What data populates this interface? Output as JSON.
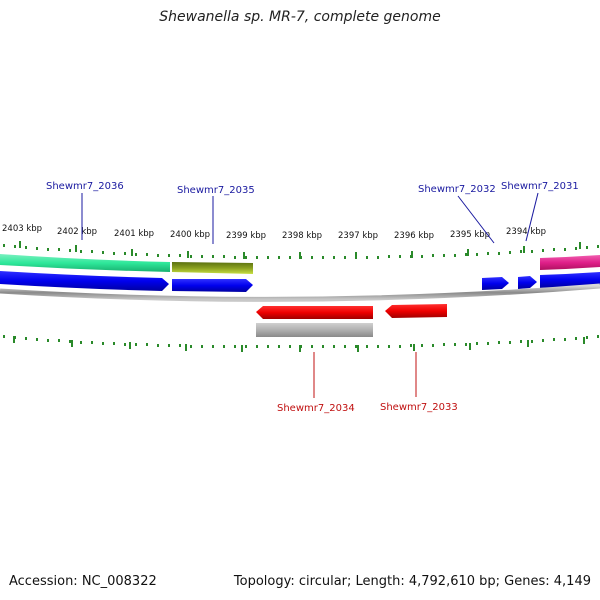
{
  "title": "Shewanella sp. MR-7, complete genome",
  "footer": {
    "accession": "Accession: NC_008322",
    "topology": "Topology: circular; Length: 4,792,610 bp; Genes: 4,149"
  },
  "tick_labels": [
    "2403 kbp",
    "2402 kbp",
    "2401 kbp",
    "2400 kbp",
    "2399 kbp",
    "2398 kbp",
    "2397 kbp",
    "2396 kbp",
    "2395 kbp",
    "2394 kbp"
  ],
  "genes_forward_labels": [
    "Shewmr7_2036",
    "Shewmr7_2035",
    "Shewmr7_2032",
    "Shewmr7_2031"
  ],
  "genes_reverse_labels": [
    "Shewmr7_2034",
    "Shewmr7_2033"
  ],
  "colors": {
    "forward_label": "#1a1aa0",
    "reverse_label": "#c01010",
    "cds_forward": "#0000ee",
    "cds_reverse": "#ee0000",
    "tick": "#2a8a2a",
    "backbone": "#8a8a8a",
    "feature_green": "#2ee89a",
    "feature_olive": "#8aa020",
    "feature_magenta": "#e0208a",
    "feature_gray": "#b0b0b0"
  }
}
